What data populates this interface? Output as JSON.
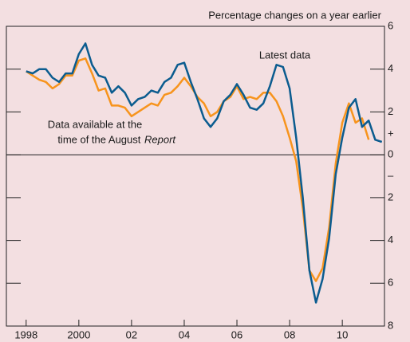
{
  "chart_data": {
    "type": "line",
    "subtitle": "Percentage changes on a year earlier",
    "annotations": [
      "Latest data",
      "Data available at the",
      "time of the August ",
      "Report",
      "+",
      "–"
    ],
    "x": [
      1998,
      1998.25,
      1998.5,
      1998.75,
      1999,
      1999.25,
      1999.5,
      1999.75,
      2000,
      2000.25,
      2000.5,
      2000.75,
      2001,
      2001.25,
      2001.5,
      2001.75,
      2002,
      2002.25,
      2002.5,
      2002.75,
      2003,
      2003.25,
      2003.5,
      2003.75,
      2004,
      2004.25,
      2004.5,
      2004.75,
      2005,
      2005.25,
      2005.5,
      2005.75,
      2006,
      2006.25,
      2006.5,
      2006.75,
      2007,
      2007.25,
      2007.5,
      2007.75,
      2008,
      2008.25,
      2008.5,
      2008.75,
      2009,
      2009.25,
      2009.5,
      2009.75,
      2010,
      2010.25,
      2010.5,
      2010.75,
      2011,
      2011.25,
      2011.5
    ],
    "series": [
      {
        "name": "Latest data",
        "color": "#0b5c8f",
        "values": [
          3.9,
          3.8,
          4.0,
          4.0,
          3.6,
          3.4,
          3.8,
          3.8,
          4.7,
          5.2,
          4.2,
          3.7,
          3.6,
          2.9,
          3.2,
          2.9,
          2.3,
          2.6,
          2.7,
          3.0,
          2.9,
          3.4,
          3.6,
          4.2,
          4.3,
          3.4,
          2.6,
          1.7,
          1.3,
          1.7,
          2.5,
          2.8,
          3.3,
          2.8,
          2.2,
          2.1,
          2.4,
          3.2,
          4.2,
          4.1,
          3.1,
          0.8,
          -2.0,
          -5.4,
          -6.9,
          -5.8,
          -3.9,
          -0.9,
          0.8,
          2.2,
          2.6,
          1.3,
          1.6,
          0.7,
          0.6
        ]
      },
      {
        "name": "Data available at the time of the August Report",
        "color": "#f7941d",
        "values": [
          3.9,
          3.7,
          3.5,
          3.4,
          3.1,
          3.3,
          3.7,
          3.7,
          4.4,
          4.5,
          3.8,
          3.0,
          3.1,
          2.3,
          2.3,
          2.2,
          1.8,
          2.0,
          2.2,
          2.4,
          2.3,
          2.8,
          2.9,
          3.2,
          3.6,
          3.2,
          2.7,
          2.4,
          1.8,
          2.0,
          2.5,
          2.7,
          3.2,
          2.6,
          2.7,
          2.6,
          2.9,
          2.9,
          2.5,
          1.8,
          0.8,
          -0.3,
          -2.5,
          -5.4,
          -5.9,
          -5.3,
          -3.4,
          -0.4,
          1.5,
          2.4,
          1.5,
          1.7,
          0.7,
          null,
          null
        ]
      }
    ],
    "xlim": [
      1997.25,
      2011.6
    ],
    "xticks": [
      1998,
      {
        "value": 2000,
        "label": "2000"
      },
      {
        "value": 2002,
        "label": "02"
      },
      {
        "value": 2004,
        "label": "04"
      },
      {
        "value": 2006,
        "label": "06"
      },
      {
        "value": 2008,
        "label": "08"
      },
      {
        "value": 2010,
        "label": "10"
      }
    ],
    "ylim": [
      -8,
      6
    ],
    "yticks": [
      6,
      4,
      2,
      0,
      {
        "value": -2,
        "label": "2"
      },
      {
        "value": -4,
        "label": "4"
      },
      {
        "value": -6,
        "label": "6"
      },
      {
        "value": -8,
        "label": "8"
      }
    ]
  }
}
